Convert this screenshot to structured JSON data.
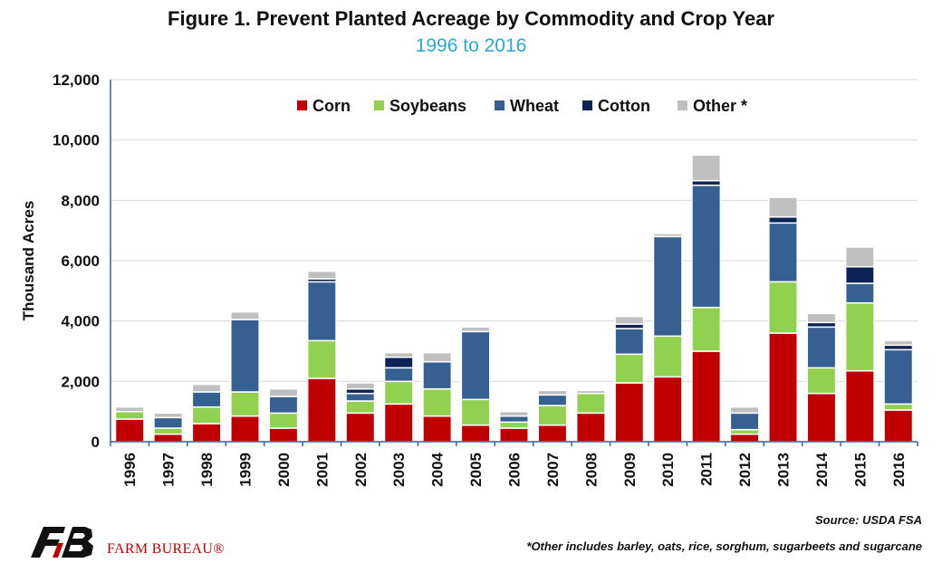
{
  "title": "Figure 1. Prevent Planted Acreage by Commodity and Crop Year",
  "subtitle": "1996 to 2016",
  "source": "Source: USDA FSA",
  "footnote": "*Other includes barley, oats, rice, sorghum, sugarbeets and sugarcane",
  "brand": "FARM BUREAU®",
  "colors": {
    "subtitle": "#29a8d8",
    "corn": "#c00000",
    "soybeans": "#92d050",
    "wheat": "#376092",
    "cotton": "#0d2356",
    "other": "#bfbfbf",
    "axis": "#376092",
    "grid": "#d9d9d9",
    "brand": "#c00000"
  },
  "chart_data": {
    "type": "bar",
    "stacked": true,
    "categories": [
      "1996",
      "1997",
      "1998",
      "1999",
      "2000",
      "2001",
      "2002",
      "2003",
      "2004",
      "2005",
      "2006",
      "2007",
      "2008",
      "2009",
      "2010",
      "2011",
      "2012",
      "2013",
      "2014",
      "2015",
      "2016"
    ],
    "series": [
      {
        "name": "Corn",
        "color": "#c00000",
        "values": [
          750,
          250,
          600,
          850,
          450,
          2100,
          950,
          1250,
          850,
          550,
          450,
          550,
          950,
          1950,
          2150,
          3000,
          250,
          3600,
          1600,
          2350,
          1050
        ]
      },
      {
        "name": "Soybeans",
        "color": "#92d050",
        "values": [
          250,
          200,
          550,
          800,
          500,
          1250,
          400,
          750,
          900,
          850,
          200,
          650,
          650,
          950,
          1350,
          1450,
          150,
          1700,
          850,
          2250,
          200
        ]
      },
      {
        "name": "Wheat",
        "color": "#376092",
        "values": [
          0,
          350,
          500,
          2400,
          550,
          1950,
          250,
          450,
          900,
          2250,
          200,
          350,
          0,
          850,
          3300,
          4050,
          550,
          1950,
          1350,
          650,
          1800
        ]
      },
      {
        "name": "Cotton",
        "color": "#0d2356",
        "values": [
          0,
          0,
          0,
          0,
          0,
          100,
          150,
          350,
          0,
          0,
          0,
          0,
          0,
          150,
          0,
          150,
          0,
          200,
          150,
          550,
          150
        ]
      },
      {
        "name": "Other *",
        "color": "#bfbfbf",
        "values": [
          150,
          150,
          250,
          250,
          250,
          250,
          200,
          150,
          300,
          150,
          150,
          150,
          100,
          250,
          100,
          850,
          200,
          650,
          300,
          650,
          150
        ]
      }
    ],
    "ylabel": "Thousand Acres",
    "xlabel": "",
    "ylim": [
      0,
      12000
    ],
    "yticks": [
      0,
      2000,
      4000,
      6000,
      8000,
      10000,
      12000
    ],
    "ytick_labels": [
      "0",
      "2,000",
      "4,000",
      "6,000",
      "8,000",
      "10,000",
      "12,000"
    ],
    "legend_position": "top-center",
    "grid": true
  }
}
